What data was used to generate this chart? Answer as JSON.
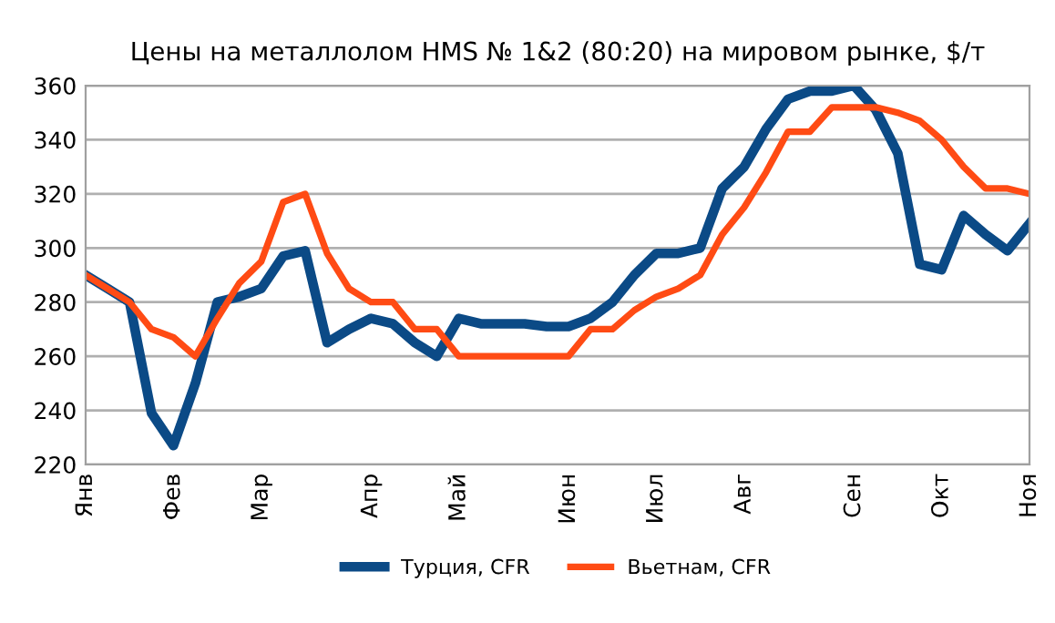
{
  "chart_data": {
    "type": "line",
    "title": "Цены на металлолом HMS № 1&2 (80:20) на мировом рынке, $/т",
    "categories": [
      "Янв",
      null,
      null,
      null,
      "Фев",
      null,
      null,
      null,
      "Мар",
      null,
      null,
      null,
      null,
      "Апр",
      null,
      null,
      null,
      "Май",
      null,
      null,
      null,
      null,
      "Июн",
      null,
      null,
      null,
      "Июл",
      null,
      null,
      null,
      "Авг",
      null,
      null,
      null,
      null,
      "Сен",
      null,
      null,
      null,
      "Окт",
      null,
      null,
      null,
      "Ноя"
    ],
    "series": [
      {
        "name": "Турция, CFR",
        "color": "#0b4a86",
        "values": [
          290,
          285,
          280,
          239,
          227,
          250,
          280,
          282,
          285,
          297,
          299,
          265,
          270,
          274,
          272,
          265,
          260,
          274,
          272,
          272,
          272,
          271,
          271,
          274,
          280,
          290,
          298,
          298,
          300,
          322,
          330,
          344,
          355,
          358,
          358,
          360,
          351,
          335,
          294,
          292,
          312,
          305,
          299,
          309
        ]
      },
      {
        "name": "Вьетнам, CFR",
        "color": "#ff4b14",
        "values": [
          290,
          285,
          280,
          270,
          267,
          260,
          274,
          287,
          295,
          317,
          320,
          298,
          285,
          280,
          280,
          270,
          270,
          260,
          260,
          260,
          260,
          260,
          260,
          270,
          270,
          277,
          282,
          285,
          290,
          305,
          315,
          328,
          343,
          343,
          352,
          352,
          352,
          350,
          347,
          340,
          330,
          322,
          322,
          320
        ]
      }
    ],
    "ylim": [
      220,
      360
    ],
    "yticks": [
      220,
      240,
      260,
      280,
      300,
      320,
      340,
      360
    ],
    "grid": "y",
    "legend": "bottom",
    "marker": "none",
    "line_style": "solid"
  }
}
